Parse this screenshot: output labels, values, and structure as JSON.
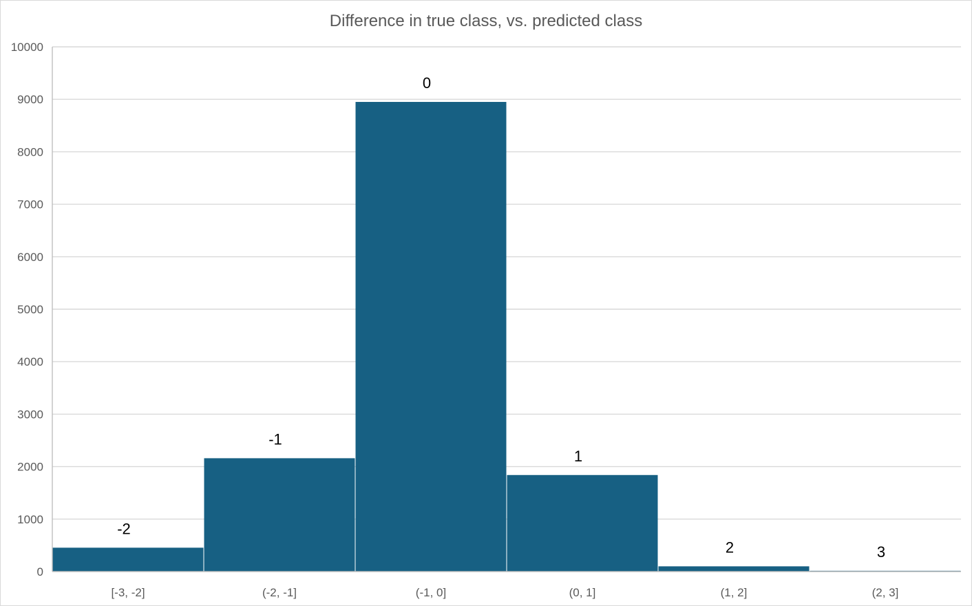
{
  "chart_data": {
    "type": "bar",
    "title": "Difference in true class, vs. predicted class",
    "xlabel": "",
    "ylabel": "",
    "categories": [
      "[-3, -2]",
      "(-2, -1]",
      "(-1, 0]",
      "(0, 1]",
      "(1, 2]",
      "(2, 3]"
    ],
    "values": [
      455,
      2160,
      8950,
      1840,
      100,
      15
    ],
    "data_labels": [
      "-2",
      "-1",
      "0",
      "1",
      "2",
      "3"
    ],
    "ylim": [
      0,
      10000
    ],
    "yticks": [
      0,
      1000,
      2000,
      3000,
      4000,
      5000,
      6000,
      7000,
      8000,
      9000,
      10000
    ],
    "grid": true,
    "legend": "none",
    "bar_color": "#176083"
  }
}
